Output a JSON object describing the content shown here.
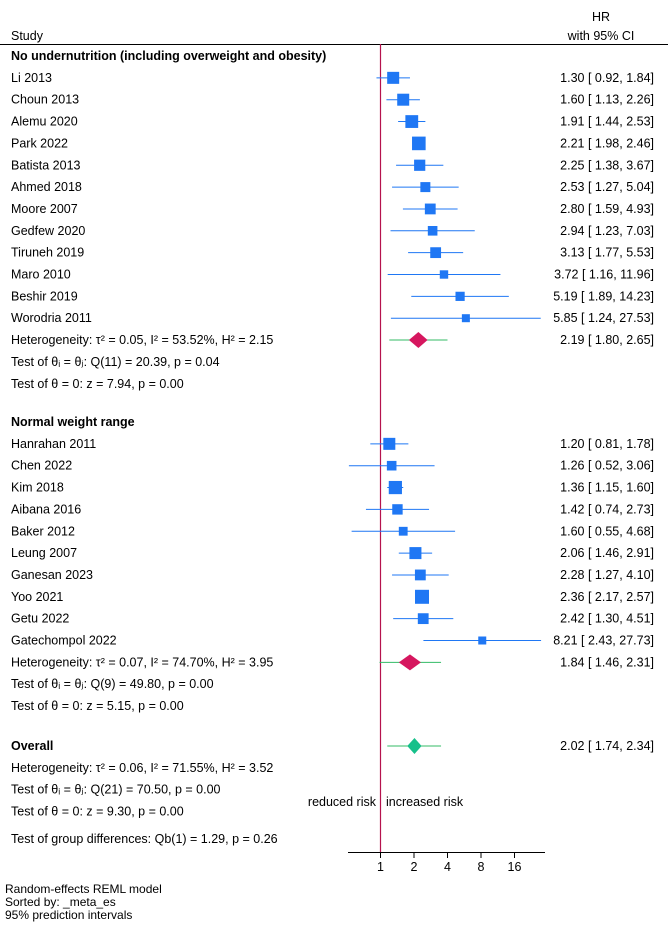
{
  "chart_data": {
    "type": "forest",
    "header": {
      "study": "Study",
      "hr": "HR",
      "ci": "with 95% CI"
    },
    "x_scale": "log2",
    "xlim": [
      0.55,
      27.73
    ],
    "ticks": [
      1,
      2,
      4,
      8,
      16
    ],
    "tick_labels": [
      "1",
      "2",
      "4",
      "8",
      "16"
    ],
    "colors": {
      "study": "#1f77f4",
      "subgroup_diamond": "#d6175f",
      "overall_diamond": "#17c08a",
      "pi_line": "#33bb66",
      "null_line": "#b5124d"
    },
    "groups": [
      {
        "title": "No undernutrition (including overweight and obesity)",
        "studies": [
          {
            "name": "Li 2013",
            "hr": 1.3,
            "lo": 0.92,
            "hi": 1.84,
            "w": 1.0,
            "label": "1.30 [ 0.92,   1.84]"
          },
          {
            "name": "Choun 2013",
            "hr": 1.6,
            "lo": 1.13,
            "hi": 2.26,
            "w": 1.0,
            "label": "1.60 [ 1.13,   2.26]"
          },
          {
            "name": "Alemu 2020",
            "hr": 1.91,
            "lo": 1.44,
            "hi": 2.53,
            "w": 1.1,
            "label": "1.91 [ 1.44,   2.53]"
          },
          {
            "name": "Park 2022",
            "hr": 2.21,
            "lo": 1.98,
            "hi": 2.46,
            "w": 1.2,
            "label": "2.21 [ 1.98,   2.46]"
          },
          {
            "name": "Batista 2013",
            "hr": 2.25,
            "lo": 1.38,
            "hi": 3.67,
            "w": 0.9,
            "label": "2.25 [ 1.38,   3.67]"
          },
          {
            "name": "Ahmed 2018",
            "hr": 2.53,
            "lo": 1.27,
            "hi": 5.04,
            "w": 0.75,
            "label": "2.53 [ 1.27,   5.04]"
          },
          {
            "name": "Moore 2007",
            "hr": 2.8,
            "lo": 1.59,
            "hi": 4.93,
            "w": 0.85,
            "label": "2.80 [ 1.59,   4.93]"
          },
          {
            "name": "Gedfew 2020",
            "hr": 2.94,
            "lo": 1.23,
            "hi": 7.03,
            "w": 0.7,
            "label": "2.94 [ 1.23,   7.03]"
          },
          {
            "name": "Tiruneh 2019",
            "hr": 3.13,
            "lo": 1.77,
            "hi": 5.53,
            "w": 0.85,
            "label": "3.13 [ 1.77,   5.53]"
          },
          {
            "name": "Maro 2010",
            "hr": 3.72,
            "lo": 1.16,
            "hi": 11.96,
            "w": 0.55,
            "label": "3.72 [ 1.16,  11.96]"
          },
          {
            "name": "Beshir 2019",
            "hr": 5.19,
            "lo": 1.89,
            "hi": 14.23,
            "w": 0.65,
            "label": "5.19 [ 1.89,  14.23]"
          },
          {
            "name": "Worodria 2011",
            "hr": 5.85,
            "lo": 1.24,
            "hi": 27.53,
            "w": 0.5,
            "label": "5.85 [ 1.24,  27.53]"
          }
        ],
        "summary": {
          "label_text": "Heterogeneity: τ² = 0.05, I² = 53.52%, H² = 2.15",
          "hr": 2.19,
          "lo": 1.8,
          "hi": 2.65,
          "pi_lo": 1.2,
          "pi_hi": 4.0,
          "label": "2.19 [ 1.80,   2.65]"
        },
        "tests": [
          "Test of θᵢ = θⱼ: Q(11) = 20.39, p = 0.04",
          "Test of θ = 0: z = 7.94, p = 0.00"
        ]
      },
      {
        "title": "Normal weight range",
        "studies": [
          {
            "name": "Hanrahan 2011",
            "hr": 1.2,
            "lo": 0.81,
            "hi": 1.78,
            "w": 1.0,
            "label": "1.20 [ 0.81,   1.78]"
          },
          {
            "name": "Chen 2022",
            "hr": 1.26,
            "lo": 0.52,
            "hi": 3.06,
            "w": 0.7,
            "label": "1.26 [ 0.52,   3.06]"
          },
          {
            "name": "Kim 2018",
            "hr": 1.36,
            "lo": 1.15,
            "hi": 1.6,
            "w": 1.15,
            "label": "1.36 [ 1.15,   1.60]"
          },
          {
            "name": "Aibana 2016",
            "hr": 1.42,
            "lo": 0.74,
            "hi": 2.73,
            "w": 0.8,
            "label": "1.42 [ 0.74,   2.73]"
          },
          {
            "name": "Baker 2012",
            "hr": 1.6,
            "lo": 0.55,
            "hi": 4.68,
            "w": 0.6,
            "label": "1.60 [ 0.55,   4.68]"
          },
          {
            "name": "Leung 2007",
            "hr": 2.06,
            "lo": 1.46,
            "hi": 2.91,
            "w": 1.0,
            "label": "2.06 [ 1.46,   2.91]"
          },
          {
            "name": "Ganesan 2023",
            "hr": 2.28,
            "lo": 1.27,
            "hi": 4.1,
            "w": 0.85,
            "label": "2.28 [ 1.27,   4.10]"
          },
          {
            "name": "Yoo 2021",
            "hr": 2.36,
            "lo": 2.17,
            "hi": 2.57,
            "w": 1.25,
            "label": "2.36 [ 2.17,   2.57]"
          },
          {
            "name": "Getu 2022",
            "hr": 2.42,
            "lo": 1.3,
            "hi": 4.51,
            "w": 0.85,
            "label": "2.42 [ 1.30,   4.51]"
          },
          {
            "name": "Gatechompol 2022",
            "hr": 8.21,
            "lo": 2.43,
            "hi": 27.73,
            "w": 0.5,
            "label": "8.21 [ 2.43,  27.73]"
          }
        ],
        "summary": {
          "label_text": "Heterogeneity: τ² = 0.07, I² = 74.70%, H² = 3.95",
          "hr": 1.84,
          "lo": 1.46,
          "hi": 2.31,
          "pi_lo": 0.98,
          "pi_hi": 3.5,
          "label": "1.84 [ 1.46,   2.31]"
        },
        "tests": [
          "Test of θᵢ = θⱼ: Q(9) = 49.80, p = 0.00",
          "Test of θ = 0: z = 5.15, p = 0.00"
        ]
      }
    ],
    "overall": {
      "title": "Overall",
      "hr": 2.02,
      "lo": 1.74,
      "hi": 2.34,
      "pi_lo": 1.15,
      "pi_hi": 3.5,
      "label": "2.02 [ 1.74,   2.34]",
      "lines": [
        "Heterogeneity: τ² = 0.06, I² = 71.55%, H² = 3.52",
        "Test of θᵢ = θⱼ: Q(21) = 70.50, p = 0.00",
        "Test of θ = 0: z = 9.30, p = 0.00"
      ],
      "group_diff": "Test of group differences: Qb(1) = 1.29, p = 0.26"
    },
    "annotations": {
      "left": "reduced risk",
      "right": "increased risk"
    },
    "footer": [
      "Random-effects REML model",
      "Sorted by: _meta_es",
      "95% prediction intervals"
    ]
  }
}
